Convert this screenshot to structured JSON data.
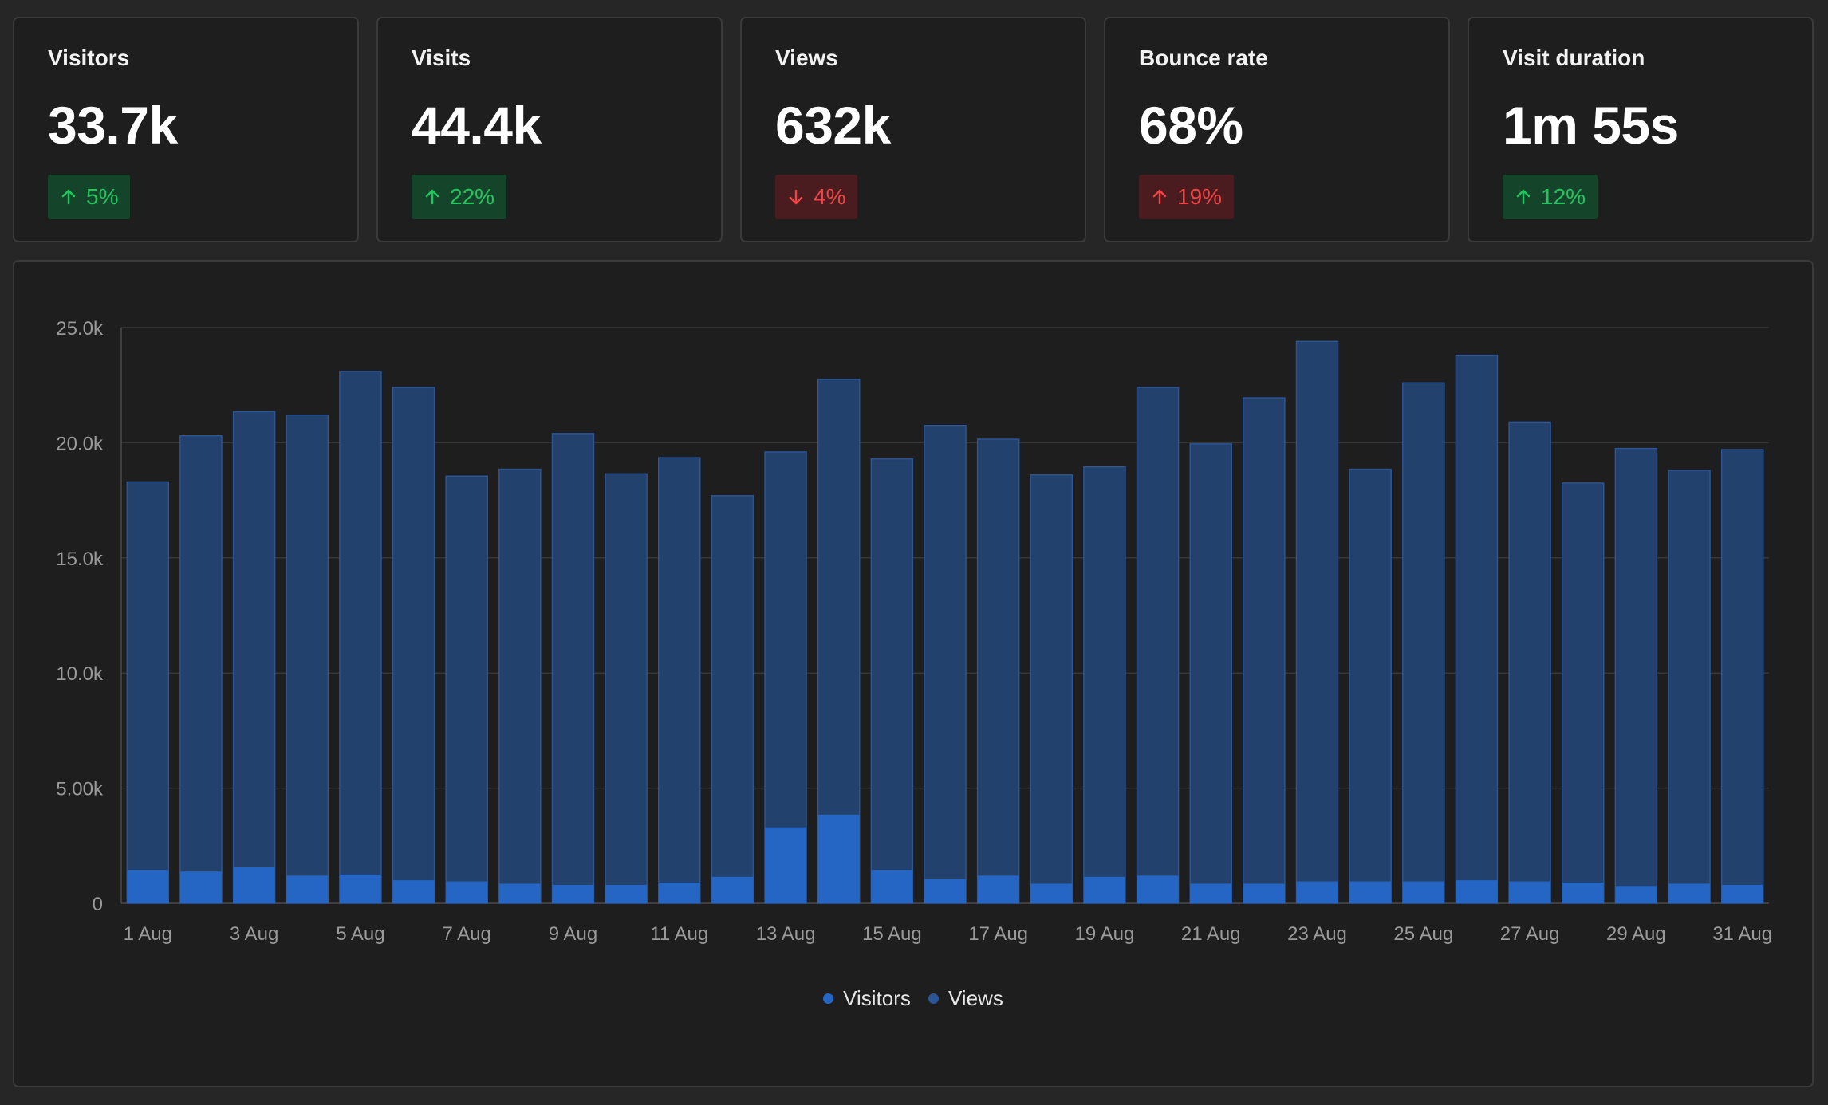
{
  "metrics": [
    {
      "label": "Visitors",
      "value": "33.7k",
      "change": "5%",
      "direction": "up",
      "sentiment": "good"
    },
    {
      "label": "Visits",
      "value": "44.4k",
      "change": "22%",
      "direction": "up",
      "sentiment": "good"
    },
    {
      "label": "Views",
      "value": "632k",
      "change": "4%",
      "direction": "down",
      "sentiment": "bad"
    },
    {
      "label": "Bounce rate",
      "value": "68%",
      "change": "19%",
      "direction": "up",
      "sentiment": "bad"
    },
    {
      "label": "Visit duration",
      "value": "1m 55s",
      "change": "12%",
      "direction": "up",
      "sentiment": "good"
    }
  ],
  "colors": {
    "background": "#262626",
    "card": "#1e1e1e",
    "good": "#22c55e",
    "bad": "#ef4444",
    "visitors": "#2566c4",
    "views": "#22416c"
  },
  "chart_data": {
    "type": "bar",
    "stacking": "overlaid",
    "categories": [
      "1 Aug",
      "2 Aug",
      "3 Aug",
      "4 Aug",
      "5 Aug",
      "6 Aug",
      "7 Aug",
      "8 Aug",
      "9 Aug",
      "10 Aug",
      "11 Aug",
      "12 Aug",
      "13 Aug",
      "14 Aug",
      "15 Aug",
      "16 Aug",
      "17 Aug",
      "18 Aug",
      "19 Aug",
      "20 Aug",
      "21 Aug",
      "22 Aug",
      "23 Aug",
      "24 Aug",
      "25 Aug",
      "26 Aug",
      "27 Aug",
      "28 Aug",
      "29 Aug",
      "30 Aug",
      "31 Aug"
    ],
    "x_tick_labels": [
      "1 Aug",
      "3 Aug",
      "5 Aug",
      "7 Aug",
      "9 Aug",
      "11 Aug",
      "13 Aug",
      "15 Aug",
      "17 Aug",
      "19 Aug",
      "21 Aug",
      "23 Aug",
      "25 Aug",
      "27 Aug",
      "29 Aug",
      "31 Aug"
    ],
    "y_tick_labels": [
      "0",
      "5.00k",
      "10.0k",
      "15.0k",
      "20.0k",
      "25.0k"
    ],
    "ylim": [
      0,
      25000
    ],
    "grid": true,
    "legend_position": "bottom-center",
    "series": [
      {
        "name": "Visitors",
        "color": "#2566c4",
        "values": [
          1450,
          1380,
          1560,
          1200,
          1250,
          1000,
          950,
          850,
          800,
          800,
          900,
          1150,
          3300,
          3850,
          1450,
          1050,
          1200,
          850,
          1150,
          1200,
          850,
          850,
          950,
          950,
          950,
          1000,
          950,
          900,
          750,
          850,
          800
        ]
      },
      {
        "name": "Views",
        "color": "#22416c",
        "values": [
          18300,
          20300,
          21350,
          21200,
          23100,
          22400,
          18550,
          18850,
          20400,
          18650,
          19350,
          17700,
          19600,
          22750,
          19300,
          20750,
          20150,
          18600,
          18950,
          22400,
          19950,
          21950,
          24400,
          18850,
          22600,
          23800,
          20900,
          18250,
          19750,
          18800,
          19700
        ]
      }
    ]
  }
}
